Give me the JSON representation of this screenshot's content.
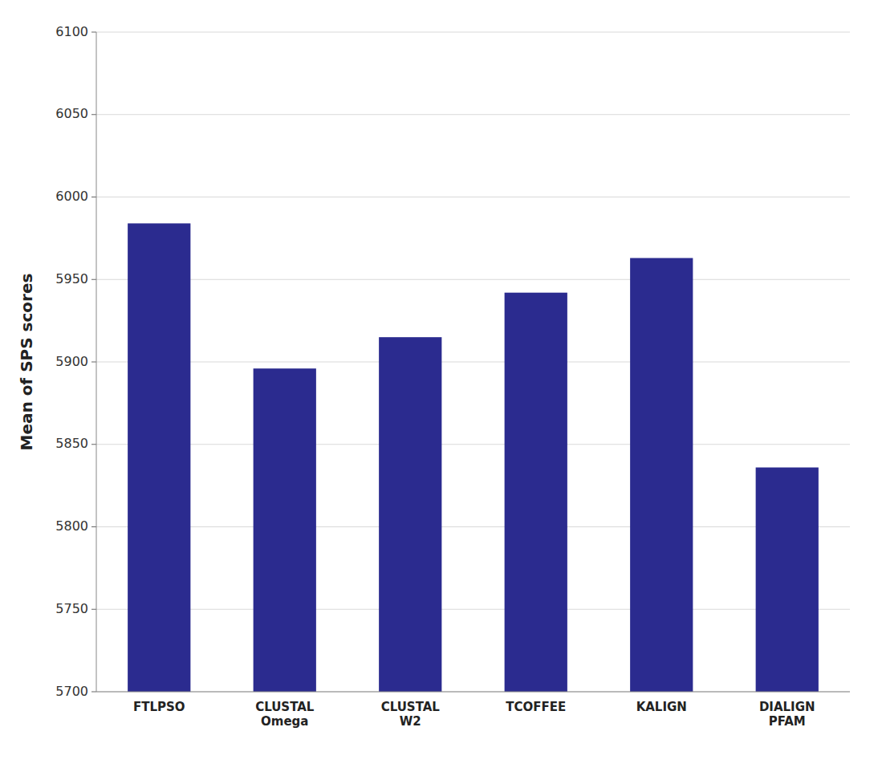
{
  "chart_data": {
    "type": "bar",
    "categories": [
      "FTLPSO",
      "CLUSTAL\nOmega",
      "CLUSTAL\nW2",
      "TCOFFEE",
      "KALIGN",
      "DIALIGN\nPFAM"
    ],
    "values": [
      5984,
      5896,
      5915,
      5942,
      5963,
      5836
    ],
    "color": "#2b2b8f",
    "y_label": "Mean of SPS scores",
    "ylim": [
      5700,
      6100
    ],
    "yticks": [
      5700,
      5750,
      5800,
      5850,
      5900,
      5950,
      6000,
      6050,
      6100
    ],
    "grid": true
  }
}
